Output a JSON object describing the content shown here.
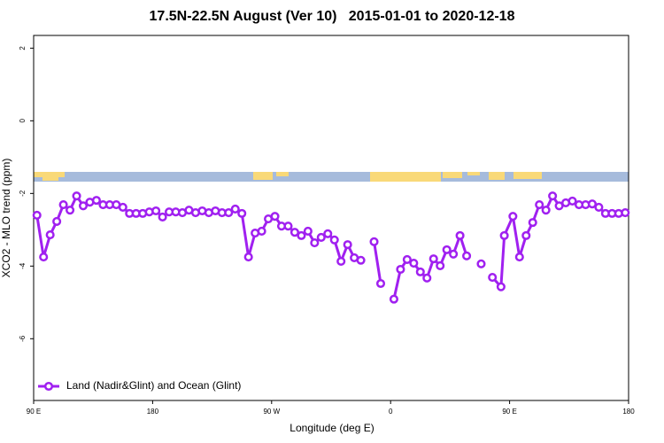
{
  "chart_data": {
    "type": "line",
    "title": "17.5N-22.5N August (Ver 10)   2015-01-01 to 2020-12-18",
    "x_label": "Longitude (deg E)",
    "y_label": "XCO2 - MLO trend (ppm)",
    "xlim": [
      90,
      540
    ],
    "xticks": [
      {
        "value": 90,
        "label": "90 E"
      },
      180,
      {
        "value": 270,
        "label": "90 W"
      },
      {
        "value": 360,
        "label": "0"
      },
      {
        "value": 450,
        "label": "90 E"
      },
      {
        "value": 540,
        "label": "180"
      }
    ],
    "ylim": [
      -7.7,
      2.35
    ],
    "yticks": [
      2,
      0,
      -2,
      -4,
      -6
    ],
    "legend": "bottomleft",
    "x": [
      92.5,
      97.5,
      102.5,
      107.5,
      112.5,
      117.5,
      122.5,
      127.5,
      132.5,
      137.5,
      142.5,
      147.5,
      152.5,
      157.5,
      162.5,
      167.5,
      172.5,
      177.5,
      182.5,
      187.5,
      192.5,
      197.5,
      202.5,
      207.5,
      212.5,
      217.5,
      222.5,
      227.5,
      232.5,
      237.5,
      242.5,
      247.5,
      252.5,
      257.5,
      262.5,
      267.5,
      272.5,
      277.5,
      282.5,
      287.5,
      292.5,
      297.5,
      302.5,
      307.5,
      312.5,
      317.5,
      322.5,
      327.5,
      332.5,
      337.5,
      342.5,
      347.5,
      352.5,
      357.5,
      362.5,
      367.5,
      372.5,
      377.5,
      382.5,
      387.5,
      392.5,
      397.5,
      402.5,
      407.5,
      412.5,
      417.5,
      422.5,
      428.5,
      432.5,
      437,
      443.5,
      446,
      452.5,
      457.5,
      462.5,
      467.5,
      472.5,
      477.5,
      482.5,
      487.5,
      492.5,
      497.5,
      502.5,
      507.5,
      512.5,
      517.5,
      522.5,
      527.5,
      532.5,
      537.5
    ],
    "series": [
      {
        "name": "Land (Nadir&Glint) and Ocean (Glint)",
        "color": "#a020f0",
        "values": [
          -2.6,
          -3.75,
          -3.14,
          -2.77,
          -2.31,
          -2.46,
          -2.07,
          -2.34,
          -2.24,
          -2.19,
          -2.31,
          -2.31,
          -2.31,
          -2.38,
          -2.55,
          -2.55,
          -2.55,
          -2.51,
          -2.48,
          -2.65,
          -2.51,
          -2.51,
          -2.53,
          -2.46,
          -2.53,
          -2.48,
          -2.53,
          -2.48,
          -2.53,
          -2.53,
          -2.43,
          -2.55,
          -3.75,
          -3.09,
          -3.04,
          -2.7,
          -2.63,
          -2.9,
          -2.9,
          -3.07,
          -3.16,
          -3.04,
          -3.36,
          -3.21,
          -3.11,
          -3.28,
          -3.87,
          -3.41,
          -3.77,
          -3.84,
          null,
          -3.33,
          -4.48,
          null,
          -4.91,
          -4.09,
          -3.82,
          -3.92,
          -4.16,
          -4.33,
          -3.8,
          -3.99,
          -3.55,
          -3.67,
          -3.16,
          -3.72,
          null,
          -3.94,
          null,
          -4.31,
          -4.57,
          -3.16,
          -2.63,
          -3.75,
          -3.16,
          -2.8,
          -2.31,
          -2.46,
          -2.07,
          -2.34,
          -2.26,
          -2.21,
          -2.31,
          -2.31,
          -2.29,
          -2.38,
          -2.55,
          -2.55,
          -2.55,
          -2.53
        ]
      }
    ]
  }
}
